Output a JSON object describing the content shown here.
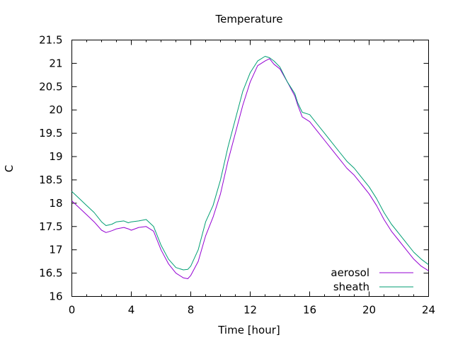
{
  "chart_data": {
    "type": "line",
    "title": "Temperature",
    "xlabel": "Time [hour]",
    "ylabel": "C",
    "xlim": [
      0,
      24
    ],
    "ylim": [
      16,
      21.5
    ],
    "xticks": [
      0,
      4,
      8,
      12,
      16,
      20,
      24
    ],
    "xtick_labels": [
      "0",
      "4",
      "8",
      "12",
      "16",
      "20",
      "24"
    ],
    "yticks": [
      16,
      16.5,
      17,
      17.5,
      18,
      18.5,
      19,
      19.5,
      20,
      20.5,
      21,
      21.5
    ],
    "ytick_labels": [
      "16",
      "16.5",
      "17",
      "17.5",
      "18",
      "18.5",
      "19",
      "19.5",
      "20",
      "20.5",
      "21",
      "21.5"
    ],
    "grid": false,
    "legend_position": "bottom-right",
    "series": [
      {
        "name": "aerosol",
        "color": "#9400d3",
        "x": [
          0,
          0.5,
          1,
          1.5,
          2,
          2.3,
          2.7,
          3,
          3.5,
          3.8,
          4,
          4.5,
          5,
          5.5,
          6,
          6.5,
          7,
          7.5,
          7.8,
          8,
          8.5,
          9,
          9.5,
          10,
          10.5,
          11,
          11.5,
          12,
          12.5,
          13,
          13.3,
          13.6,
          14,
          14.5,
          15,
          15.2,
          15.5,
          16,
          16.5,
          17,
          17.5,
          18,
          18.5,
          19,
          19.5,
          20,
          20.5,
          21,
          21.5,
          22,
          22.5,
          23,
          23.5,
          24
        ],
        "y": [
          18.05,
          17.9,
          17.75,
          17.6,
          17.42,
          17.37,
          17.41,
          17.45,
          17.48,
          17.45,
          17.42,
          17.48,
          17.5,
          17.4,
          17.0,
          16.7,
          16.5,
          16.4,
          16.38,
          16.45,
          16.75,
          17.3,
          17.7,
          18.2,
          18.9,
          19.5,
          20.1,
          20.6,
          20.95,
          21.05,
          21.1,
          20.98,
          20.88,
          20.6,
          20.3,
          20.1,
          19.85,
          19.75,
          19.55,
          19.35,
          19.15,
          18.95,
          18.75,
          18.6,
          18.4,
          18.2,
          17.95,
          17.65,
          17.4,
          17.2,
          17.0,
          16.8,
          16.65,
          16.55
        ]
      },
      {
        "name": "sheath",
        "color": "#009e73",
        "x": [
          0,
          0.5,
          1,
          1.5,
          2,
          2.3,
          2.7,
          3,
          3.5,
          3.8,
          4,
          4.5,
          5,
          5.5,
          6,
          6.5,
          7,
          7.5,
          7.8,
          8,
          8.5,
          9,
          9.5,
          10,
          10.5,
          11,
          11.5,
          12,
          12.5,
          13,
          13.3,
          13.6,
          14,
          14.5,
          15,
          15.2,
          15.5,
          16,
          16.5,
          17,
          17.5,
          18,
          18.5,
          19,
          19.5,
          20,
          20.5,
          21,
          21.5,
          22,
          22.5,
          23,
          23.5,
          24
        ],
        "y": [
          18.25,
          18.1,
          17.95,
          17.8,
          17.6,
          17.52,
          17.55,
          17.6,
          17.62,
          17.58,
          17.6,
          17.62,
          17.65,
          17.5,
          17.1,
          16.8,
          16.62,
          16.57,
          16.58,
          16.65,
          17.0,
          17.6,
          17.95,
          18.5,
          19.2,
          19.8,
          20.4,
          20.8,
          21.05,
          21.15,
          21.12,
          21.05,
          20.92,
          20.6,
          20.35,
          20.15,
          19.95,
          19.9,
          19.7,
          19.5,
          19.3,
          19.1,
          18.9,
          18.75,
          18.55,
          18.35,
          18.1,
          17.8,
          17.55,
          17.35,
          17.15,
          16.95,
          16.8,
          16.68
        ]
      }
    ]
  }
}
